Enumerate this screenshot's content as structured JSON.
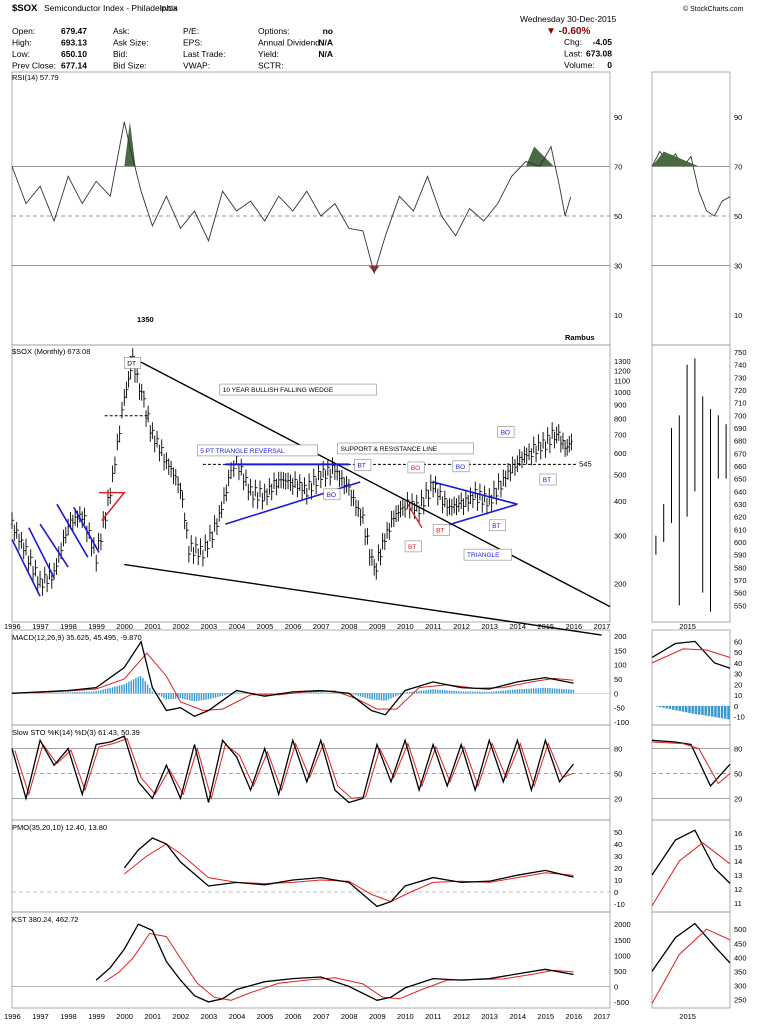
{
  "header": {
    "symbol": "$SOX",
    "name": "Semiconductor Index - Philadelphia",
    "exchange": "INDX",
    "watermark": "© StockCharts.com",
    "date": "Wednesday  30-Dec-2015",
    "change_pct": "▼ -0.60%",
    "quote": [
      {
        "label": "Open:",
        "value": "679.47"
      },
      {
        "label": "High:",
        "value": "693.13"
      },
      {
        "label": "Low:",
        "value": "650.10"
      },
      {
        "label": "Prev Close:",
        "value": "677.14"
      }
    ],
    "quote2": [
      {
        "label": "Ask:",
        "value": ""
      },
      {
        "label": "Ask Size:",
        "value": ""
      },
      {
        "label": "Bid:",
        "value": ""
      },
      {
        "label": "Bid Size:",
        "value": ""
      }
    ],
    "quote3": [
      {
        "label": "P/E:",
        "value": ""
      },
      {
        "label": "EPS:",
        "value": ""
      },
      {
        "label": "Last Trade:",
        "value": ""
      },
      {
        "label": "VWAP:",
        "value": ""
      }
    ],
    "quote4": [
      {
        "label": "Options:",
        "value": "no"
      },
      {
        "label": "Annual Dividend:",
        "value": "N/A"
      },
      {
        "label": "Yield:",
        "value": "N/A"
      },
      {
        "label": "SCTR:",
        "value": ""
      }
    ],
    "quote5": [
      {
        "label": "Chg:",
        "value": "-4.05"
      },
      {
        "label": "Last:",
        "value": "673.08"
      },
      {
        "label": "Volume:",
        "value": "0"
      }
    ]
  },
  "chart_data": [
    {
      "type": "line",
      "panel": "rsi",
      "title": "RSI(14) 57.79",
      "ylim": [
        0,
        100
      ],
      "yticks": [
        10,
        30,
        50,
        70,
        90
      ],
      "reference_lines": [
        30,
        50,
        70
      ],
      "main": {
        "x": [
          1996.0,
          1996.5,
          1997.0,
          1997.5,
          1998.0,
          1998.5,
          1999.0,
          1999.5,
          2000.0,
          2000.2,
          2000.6,
          2001.0,
          2001.5,
          2002.0,
          2002.5,
          2003.0,
          2003.5,
          2004.0,
          2004.5,
          2005.0,
          2005.5,
          2006.0,
          2006.5,
          2007.0,
          2007.5,
          2008.0,
          2008.5,
          2008.9,
          2009.3,
          2009.8,
          2010.3,
          2010.8,
          2011.3,
          2011.8,
          2012.3,
          2012.8,
          2013.3,
          2013.8,
          2014.3,
          2014.8,
          2015.2,
          2015.5,
          2015.7,
          2015.9
        ],
        "values": [
          70,
          55,
          62,
          48,
          66,
          55,
          64,
          58,
          88,
          78,
          60,
          46,
          58,
          45,
          52,
          40,
          60,
          52,
          56,
          48,
          58,
          52,
          60,
          50,
          55,
          45,
          44,
          27,
          42,
          58,
          52,
          66,
          50,
          42,
          53,
          48,
          55,
          66,
          72,
          70,
          78,
          62,
          50,
          57.79
        ]
      },
      "inset": {
        "x": [
          2015.0,
          2015.1,
          2015.2,
          2015.3,
          2015.4,
          2015.5,
          2015.6,
          2015.7,
          2015.8,
          2015.9,
          2016.0
        ],
        "values": [
          70,
          76,
          72,
          75,
          70,
          74,
          60,
          52,
          50,
          56,
          57.79
        ]
      },
      "labels": [
        "Rambus"
      ]
    },
    {
      "type": "ohlc",
      "panel": "price",
      "title": "$SOX (Monthly) 673.08",
      "scale": "log",
      "ylim": [
        150,
        1400
      ],
      "yticks": [
        200,
        300,
        400,
        500,
        600,
        700,
        800,
        900,
        1000,
        1100,
        1200,
        1300
      ],
      "x_ticks": [
        "1996",
        "1997",
        "1998",
        "1999",
        "2000",
        "2001",
        "2002",
        "2003",
        "2004",
        "2005",
        "2006",
        "2007",
        "2008",
        "2009",
        "2010",
        "2011",
        "2012",
        "2013",
        "2014",
        "2015",
        "2016",
        "2017"
      ],
      "close_path": {
        "x": [
          1996.0,
          1996.5,
          1997.0,
          1997.5,
          1998.0,
          1998.5,
          1999.0,
          1999.5,
          2000.0,
          2000.3,
          2000.7,
          2001.0,
          2001.5,
          2002.0,
          2002.3,
          2002.8,
          2003.3,
          2003.8,
          2004.0,
          2004.5,
          2005.0,
          2005.5,
          2006.0,
          2006.5,
          2007.0,
          2007.5,
          2008.0,
          2008.5,
          2008.9,
          2009.2,
          2009.6,
          2010.0,
          2010.5,
          2011.0,
          2011.5,
          2012.0,
          2012.5,
          2013.0,
          2013.5,
          2014.0,
          2014.5,
          2015.0,
          2015.4,
          2015.7,
          2016.0
        ],
        "values": [
          330,
          260,
          200,
          220,
          330,
          360,
          250,
          430,
          950,
          1300,
          900,
          700,
          560,
          450,
          270,
          260,
          330,
          510,
          560,
          430,
          420,
          480,
          470,
          440,
          500,
          520,
          440,
          340,
          220,
          280,
          350,
          390,
          380,
          460,
          380,
          390,
          420,
          400,
          480,
          560,
          610,
          650,
          720,
          620,
          673.08
        ]
      },
      "inset_range": [
        540,
        750
      ],
      "inset_yticks": [
        550,
        560,
        570,
        580,
        590,
        600,
        610,
        620,
        630,
        640,
        650,
        660,
        670,
        680,
        690,
        700,
        710,
        720,
        730,
        740,
        750
      ],
      "inset_x_label": "2015",
      "annotations": {
        "peak": "1350",
        "dt": "DT",
        "wedge": "10 YEAR BULLISH FALLING WEDGE",
        "triangle_reversal": "5 PT TRIANGLE REVERSAL",
        "support": "SUPPORT & RESISTANCE LINE",
        "level": "545",
        "bo": "BO",
        "bt": "BT",
        "triangle": "TRIANGLE"
      }
    },
    {
      "type": "line",
      "panel": "macd",
      "title": "MACD(12,26,9) 35.625, 45.495, -9.870",
      "ylim": [
        -100,
        200
      ],
      "yticks": [
        -100,
        -50,
        0,
        50,
        100,
        150,
        200
      ],
      "inset_yticks": [
        -10,
        0,
        10,
        20,
        30,
        40,
        50,
        60
      ],
      "macd": {
        "x": [
          1996,
          1997,
          1998,
          1999,
          2000,
          2000.6,
          2001,
          2001.5,
          2002,
          2002.5,
          2003,
          2004,
          2005,
          2006,
          2007,
          2008,
          2008.8,
          2009.3,
          2010,
          2011,
          2012,
          2013,
          2014,
          2015,
          2016
        ],
        "values": [
          0,
          5,
          10,
          20,
          90,
          180,
          20,
          -60,
          -50,
          -80,
          -60,
          10,
          -10,
          5,
          10,
          0,
          -60,
          -75,
          10,
          40,
          20,
          15,
          40,
          55,
          35.625
        ]
      },
      "signal": {
        "x": [
          1996,
          1997,
          1998,
          1999,
          2000,
          2000.8,
          2001.5,
          2002,
          2002.8,
          2003.5,
          2004.5,
          2005.5,
          2006.5,
          2007.5,
          2008.3,
          2009,
          2009.7,
          2010.5,
          2011.5,
          2012.5,
          2013.5,
          2014.5,
          2015.3,
          2016
        ],
        "values": [
          0,
          3,
          8,
          15,
          50,
          140,
          60,
          -30,
          -60,
          -55,
          -5,
          -5,
          5,
          8,
          -20,
          -55,
          -55,
          20,
          30,
          18,
          20,
          40,
          52,
          45.495
        ]
      }
    },
    {
      "type": "line",
      "panel": "sto",
      "title": "Slow STO %K(14) %D(3) 61.43, 50.39",
      "ylim": [
        0,
        100
      ],
      "yticks": [
        20,
        50,
        80
      ],
      "k": {
        "x": [
          1996,
          1996.5,
          1997,
          1997.5,
          1998,
          1998.5,
          1999,
          1999.5,
          2000,
          2000.5,
          2001,
          2001.5,
          2002,
          2002.5,
          2003,
          2003.5,
          2004,
          2004.5,
          2005,
          2005.5,
          2006,
          2006.5,
          2007,
          2007.5,
          2008,
          2008.5,
          2009,
          2009.5,
          2010,
          2010.5,
          2011,
          2011.5,
          2012,
          2012.5,
          2013,
          2013.5,
          2014,
          2014.5,
          2015,
          2015.5,
          2016
        ],
        "values": [
          80,
          20,
          90,
          60,
          80,
          25,
          85,
          88,
          95,
          40,
          20,
          60,
          20,
          85,
          15,
          90,
          70,
          30,
          80,
          25,
          90,
          40,
          90,
          30,
          15,
          20,
          85,
          40,
          90,
          30,
          85,
          35,
          85,
          30,
          90,
          40,
          90,
          30,
          90,
          40,
          61.43
        ]
      },
      "d": {
        "x": [
          1996.1,
          1996.6,
          1997.1,
          1997.6,
          1998.1,
          1998.6,
          1999.1,
          1999.6,
          2000.1,
          2000.6,
          2001.1,
          2001.6,
          2002.1,
          2002.6,
          2003.1,
          2003.6,
          2004.1,
          2004.6,
          2005.1,
          2005.6,
          2006.1,
          2006.6,
          2007.1,
          2007.6,
          2008.1,
          2008.6,
          2009.1,
          2009.6,
          2010.1,
          2010.6,
          2011.1,
          2011.6,
          2012.1,
          2012.6,
          2013.1,
          2013.6,
          2014.1,
          2014.6,
          2015.1,
          2015.6,
          2016
        ],
        "values": [
          78,
          25,
          85,
          62,
          78,
          30,
          82,
          86,
          92,
          45,
          25,
          55,
          25,
          80,
          20,
          85,
          72,
          35,
          76,
          30,
          86,
          45,
          86,
          35,
          20,
          22,
          80,
          45,
          86,
          35,
          82,
          40,
          82,
          35,
          86,
          45,
          86,
          35,
          86,
          45,
          50.39
        ]
      }
    },
    {
      "type": "line",
      "panel": "pmo",
      "title": "PMO(35,20,10) 12.40, 13.80",
      "ylim": [
        -15,
        55
      ],
      "yticks": [
        -10,
        0,
        10,
        20,
        30,
        40,
        50
      ],
      "inset_yticks": [
        11,
        12,
        13,
        14,
        15,
        16
      ],
      "pmo": {
        "x": [
          2000,
          2000.5,
          2001,
          2001.5,
          2002,
          2003,
          2004,
          2005,
          2006,
          2007,
          2008,
          2009,
          2009.5,
          2010,
          2011,
          2012,
          2013,
          2014,
          2015,
          2016
        ],
        "values": [
          20,
          35,
          45,
          40,
          25,
          5,
          8,
          6,
          10,
          12,
          8,
          -12,
          -8,
          5,
          12,
          8,
          9,
          14,
          18,
          12.4
        ]
      },
      "signal": {
        "x": [
          2000,
          2000.8,
          2001.5,
          2002,
          2003,
          2004,
          2005,
          2006,
          2007,
          2008,
          2008.8,
          2009.5,
          2010.2,
          2011,
          2012,
          2013,
          2014,
          2015,
          2016
        ],
        "values": [
          15,
          30,
          40,
          32,
          12,
          8,
          7,
          8,
          10,
          9,
          -2,
          -8,
          0,
          8,
          9,
          8,
          12,
          16,
          13.8
        ]
      }
    },
    {
      "type": "line",
      "panel": "kst",
      "title": "KST 380.24, 462.72",
      "ylim": [
        -600,
        2200
      ],
      "yticks": [
        -500,
        0,
        500,
        1000,
        1500,
        2000
      ],
      "inset_yticks": [
        250,
        300,
        350,
        400,
        450,
        500
      ],
      "kst": {
        "x": [
          1999,
          1999.5,
          2000,
          2000.5,
          2001,
          2001.5,
          2002,
          2002.5,
          2003,
          2003.5,
          2004,
          2005,
          2006,
          2007,
          2008,
          2009,
          2009.5,
          2010,
          2011,
          2012,
          2013,
          2014,
          2015,
          2016
        ],
        "values": [
          200,
          600,
          1200,
          2000,
          1800,
          800,
          200,
          -300,
          -500,
          -400,
          -100,
          150,
          250,
          300,
          0,
          -450,
          -350,
          -50,
          250,
          200,
          250,
          400,
          550,
          380.24
        ]
      },
      "signal": {
        "x": [
          1999.3,
          1999.8,
          2000.3,
          2000.9,
          2001.5,
          2002,
          2002.6,
          2003.2,
          2003.8,
          2004.5,
          2005.5,
          2006.5,
          2007.5,
          2008.5,
          2009.2,
          2009.8,
          2010.6,
          2011.5,
          2012.5,
          2013.5,
          2014.5,
          2015.3,
          2016
        ],
        "values": [
          150,
          450,
          900,
          1700,
          1600,
          900,
          100,
          -350,
          -450,
          -200,
          100,
          200,
          280,
          80,
          -350,
          -400,
          -100,
          200,
          220,
          240,
          380,
          520,
          462.72
        ]
      }
    }
  ]
}
